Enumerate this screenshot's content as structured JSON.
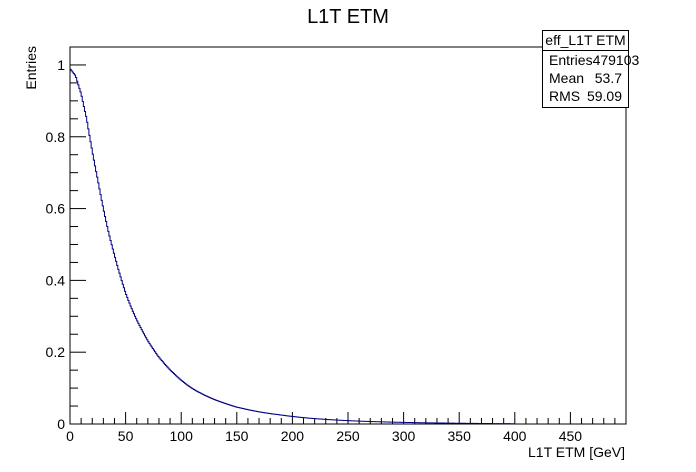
{
  "chart_data": {
    "type": "line",
    "title": "L1T ETM",
    "xlabel": "L1T ETM [GeV]",
    "ylabel": "Entries",
    "xlim": [
      0,
      500
    ],
    "ylim": [
      0,
      1.05
    ],
    "x_ticks": [
      0,
      50,
      100,
      150,
      200,
      250,
      300,
      350,
      400,
      450
    ],
    "y_ticks": [
      0,
      0.2,
      0.4,
      0.6,
      0.8,
      1
    ],
    "grid": false,
    "line_color": "#000080",
    "series": [
      {
        "x": [
          0,
          5,
          10,
          15,
          20,
          25,
          30,
          35,
          40,
          45,
          50,
          55,
          60,
          65,
          70,
          75,
          80,
          85,
          90,
          95,
          100,
          110,
          120,
          130,
          140,
          150,
          160,
          170,
          180,
          190,
          200,
          220,
          240,
          260,
          280,
          300,
          320,
          340,
          360,
          380,
          400
        ],
        "y": [
          0.99,
          0.97,
          0.92,
          0.85,
          0.76,
          0.68,
          0.6,
          0.53,
          0.47,
          0.415,
          0.365,
          0.325,
          0.29,
          0.26,
          0.232,
          0.208,
          0.186,
          0.168,
          0.151,
          0.136,
          0.122,
          0.099,
          0.082,
          0.068,
          0.057,
          0.047,
          0.04,
          0.034,
          0.029,
          0.025,
          0.021,
          0.015,
          0.011,
          0.008,
          0.006,
          0.0045,
          0.0033,
          0.0025,
          0.0018,
          0.0012,
          0.0008
        ]
      }
    ]
  },
  "stats_box": {
    "name": "eff_L1T ETM",
    "entries_label": "Entries",
    "entries_value": "479103",
    "mean_label": "Mean",
    "mean_value": "53.7",
    "rms_label": "RMS",
    "rms_value": "59.09"
  }
}
